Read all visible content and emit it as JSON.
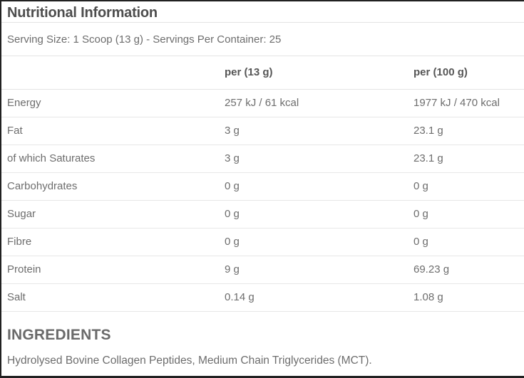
{
  "title": "Nutritional Information",
  "serving_info": "Serving Size: 1 Scoop (13 g) - Servings Per Container: 25",
  "table": {
    "columns": {
      "nutrient": "",
      "per_serving": "per (13 g)",
      "per_100g": "per (100 g)"
    },
    "rows": [
      {
        "label": "Energy",
        "per_serving": "257 kJ / 61 kcal",
        "per_100g": "1977 kJ / 470 kcal"
      },
      {
        "label": "Fat",
        "per_serving": "3 g",
        "per_100g": "23.1 g"
      },
      {
        "label": "of which Saturates",
        "per_serving": "3 g",
        "per_100g": "23.1 g"
      },
      {
        "label": "Carbohydrates",
        "per_serving": "0 g",
        "per_100g": "0 g"
      },
      {
        "label": "Sugar",
        "per_serving": "0 g",
        "per_100g": "0 g"
      },
      {
        "label": "Fibre",
        "per_serving": "0 g",
        "per_100g": "0 g"
      },
      {
        "label": "Protein",
        "per_serving": "9 g",
        "per_100g": "69.23 g"
      },
      {
        "label": "Salt",
        "per_serving": "0.14 g",
        "per_100g": "1.08 g"
      }
    ]
  },
  "ingredients": {
    "heading": "INGREDIENTS",
    "text": "Hydrolysed Bovine Collagen Peptides, Medium Chain Triglycerides (MCT)."
  },
  "colors": {
    "text": "#6d6d6d",
    "heading_text": "#4d4d4d",
    "divider": "#e4e4e4",
    "frame_border": "#212121",
    "background": "#ffffff"
  }
}
